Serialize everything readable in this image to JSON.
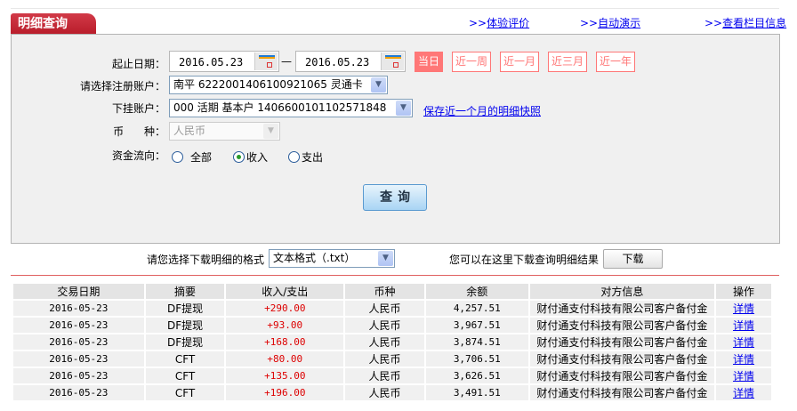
{
  "header": {
    "tab_title": "明细查询",
    "links": [
      {
        "prefix": ">>",
        "label": "体验评价"
      },
      {
        "prefix": ">>",
        "label": "自动演示"
      },
      {
        "prefix": ">>",
        "label": "查看栏目信息"
      }
    ]
  },
  "form": {
    "date_label": "起止日期：",
    "start_date": "2016.05.23",
    "date_sep": "—",
    "end_date": "2016.05.23",
    "quick_ranges": [
      {
        "label": "当日",
        "active": true
      },
      {
        "label": "近一周"
      },
      {
        "label": "近一月"
      },
      {
        "label": "近三月"
      },
      {
        "label": "近一年"
      }
    ],
    "account_label": "请选择注册账户：",
    "account_value": "南平  6222001406100921065 灵通卡",
    "subaccount_label": "下挂账户：",
    "subaccount_value": "000 活期 基本户 1406600101102571848",
    "snapshot_link": "保存近一个月的明细快照",
    "currency_label": "币      种：",
    "currency_value": "人民币",
    "flow_label": "资金流向：",
    "flow_options": [
      {
        "label": "全部",
        "checked": false
      },
      {
        "label": "收入",
        "checked": true
      },
      {
        "label": "支出",
        "checked": false
      }
    ],
    "query_button": "查询"
  },
  "download": {
    "format_label": "请您选择下载明细的格式",
    "format_value": "文本格式（.txt）",
    "hint": "您可以在这里下载查询明细结果",
    "button": "下载"
  },
  "table": {
    "headers": [
      "交易日期",
      "摘要",
      "收入/支出",
      "币种",
      "余额",
      "对方信息",
      "操作"
    ],
    "rows": [
      [
        "2016-05-23",
        "DF提现",
        "+290.00",
        "人民币",
        "4,257.51",
        "财付通支付科技有限公司客户备付金",
        "详情"
      ],
      [
        "2016-05-23",
        "DF提现",
        "+93.00",
        "人民币",
        "3,967.51",
        "财付通支付科技有限公司客户备付金",
        "详情"
      ],
      [
        "2016-05-23",
        "DF提现",
        "+168.00",
        "人民币",
        "3,874.51",
        "财付通支付科技有限公司客户备付金",
        "详情"
      ],
      [
        "2016-05-23",
        "CFT",
        "+80.00",
        "人民币",
        "3,706.51",
        "财付通支付科技有限公司客户备付金",
        "详情"
      ],
      [
        "2016-05-23",
        "CFT",
        "+135.00",
        "人民币",
        "3,626.51",
        "财付通支付科技有限公司客户备付金",
        "详情"
      ],
      [
        "2016-05-23",
        "CFT",
        "+196.00",
        "人民币",
        "3,491.51",
        "财付通支付科技有限公司客户备付金",
        "详情"
      ]
    ]
  },
  "colors": {
    "brand_red": "#c02030",
    "quick_range": "#ff7777",
    "amount": "#dd0000",
    "link": "#0000ee"
  }
}
